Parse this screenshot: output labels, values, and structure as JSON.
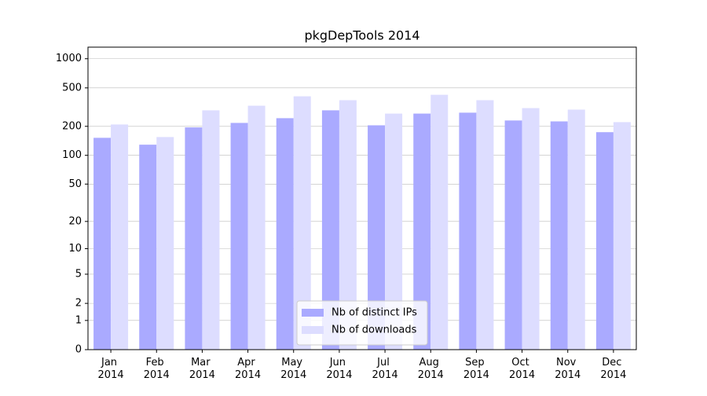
{
  "chart_data": {
    "type": "bar",
    "title": "pkgDepTools 2014",
    "categories": [
      "Jan 2014",
      "Feb 2014",
      "Mar 2014",
      "Apr 2014",
      "May 2014",
      "Jun 2014",
      "Jul 2014",
      "Aug 2014",
      "Sep 2014",
      "Oct 2014",
      "Nov 2014",
      "Dec 2014"
    ],
    "series": [
      {
        "name": "Nb of distinct IPs",
        "color": "#aaaaff",
        "values": [
          152,
          129,
          195,
          217,
          243,
          293,
          205,
          271,
          277,
          230,
          225,
          174
        ]
      },
      {
        "name": "Nb of downloads",
        "color": "#ddddff",
        "values": [
          209,
          155,
          293,
          327,
          409,
          373,
          271,
          424,
          373,
          309,
          298,
          221
        ]
      }
    ],
    "yscale": "log1p",
    "ylim": [
      0,
      1317
    ],
    "yticks": [
      0,
      1,
      2,
      5,
      10,
      20,
      50,
      100,
      200,
      500,
      1000
    ],
    "grid": true,
    "legend": "lower center"
  }
}
